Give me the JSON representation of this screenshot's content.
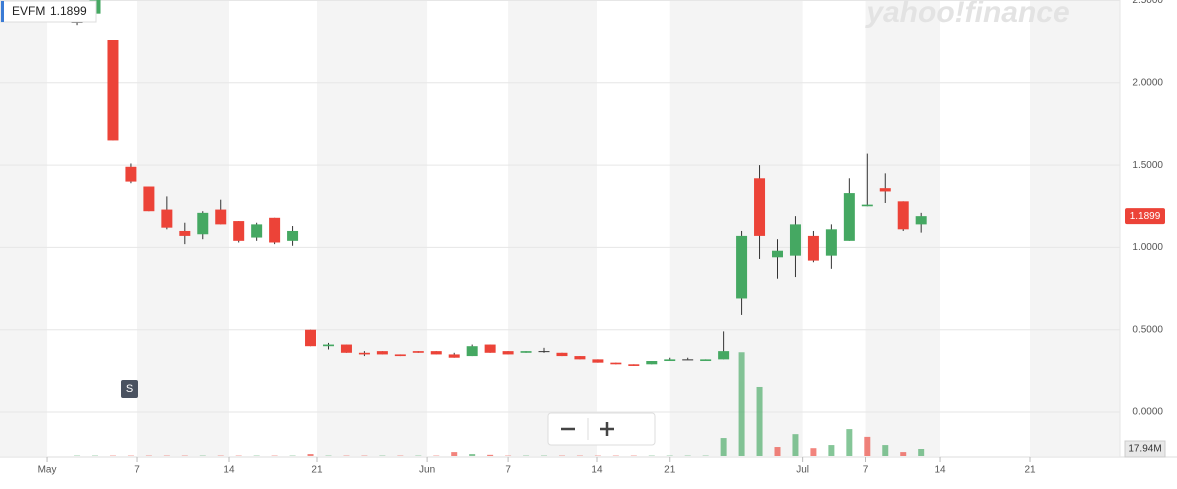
{
  "chart_data": {
    "type": "candlestick",
    "ticker": "EVFM",
    "last_price": 1.1899,
    "watermark": "yahoo!finance",
    "event_marker": "S",
    "volume_label": "17.94M",
    "up_color": "#45a862",
    "down_color": "#ec4338",
    "grid": true,
    "xlim": [
      -4.29,
      58.07
    ],
    "xticks": [
      {
        "value": -1.67,
        "label": "May"
      },
      {
        "value": 3.34,
        "label": "7"
      },
      {
        "value": 8.46,
        "label": "14"
      },
      {
        "value": 13.36,
        "label": "21"
      },
      {
        "value": 19.49,
        "label": "Jun"
      },
      {
        "value": 24.0,
        "label": "7"
      },
      {
        "value": 28.95,
        "label": "14"
      },
      {
        "value": 33.0,
        "label": "21"
      },
      {
        "value": 40.4,
        "label": "Jul"
      },
      {
        "value": 43.9,
        "label": "7"
      },
      {
        "value": 48.05,
        "label": "14"
      },
      {
        "value": 53.06,
        "label": "21"
      }
    ],
    "ylim": [
      -0.267,
      2.503
    ],
    "yticks": [
      {
        "value": 0,
        "label": "0.0000"
      },
      {
        "value": 0.5,
        "label": "0.5000"
      },
      {
        "value": 1,
        "label": "1.0000"
      },
      {
        "value": 1.5,
        "label": "1.5000"
      },
      {
        "value": 2,
        "label": "2.0000"
      },
      {
        "value": 2.5,
        "label": "2.5000"
      }
    ],
    "vlim": [
      0,
      300
    ],
    "open": [
      2.37,
      2.42,
      2.26,
      1.49,
      1.37,
      1.23,
      1.1,
      1.08,
      1.23,
      1.16,
      1.06,
      1.18,
      1.04,
      0.5,
      0.4,
      0.41,
      0.36,
      0.37,
      0.35,
      0.37,
      0.37,
      0.35,
      0.34,
      0.41,
      0.37,
      0.36,
      0.37,
      0.36,
      0.34,
      0.32,
      0.3,
      0.29,
      0.29,
      0.31,
      0.32,
      0.31,
      0.32,
      0.69,
      1.42,
      0.94,
      0.95,
      1.07,
      0.95,
      1.04,
      1.25,
      1.36,
      1.28,
      1.14
    ],
    "high": [
      2.38,
      2.52,
      2.26,
      1.51,
      1.37,
      1.31,
      1.15,
      1.22,
      1.29,
      1.16,
      1.15,
      1.18,
      1.13,
      0.5,
      0.42,
      0.41,
      0.37,
      0.37,
      0.35,
      0.37,
      0.37,
      0.36,
      0.41,
      0.41,
      0.37,
      0.37,
      0.39,
      0.36,
      0.34,
      0.32,
      0.3,
      0.29,
      0.31,
      0.33,
      0.33,
      0.32,
      0.49,
      1.1,
      1.5,
      1.05,
      1.19,
      1.1,
      1.14,
      1.42,
      1.57,
      1.45,
      1.28,
      1.21
    ],
    "low": [
      2.35,
      2.4,
      1.65,
      1.39,
      1.22,
      1.11,
      1.02,
      1.05,
      1.14,
      1.03,
      1.04,
      1.02,
      1.01,
      0.4,
      0.38,
      0.36,
      0.34,
      0.35,
      0.34,
      0.36,
      0.35,
      0.33,
      0.34,
      0.36,
      0.35,
      0.36,
      0.36,
      0.34,
      0.32,
      0.3,
      0.29,
      0.28,
      0.29,
      0.31,
      0.32,
      0.31,
      0.32,
      0.59,
      0.93,
      0.81,
      0.82,
      0.91,
      0.87,
      1.04,
      1.25,
      1.27,
      1.1,
      1.09
    ],
    "close": [
      2.37,
      2.51,
      1.65,
      1.4,
      1.22,
      1.12,
      1.07,
      1.21,
      1.14,
      1.04,
      1.14,
      1.03,
      1.1,
      0.4,
      0.41,
      0.36,
      0.35,
      0.35,
      0.34,
      0.36,
      0.35,
      0.33,
      0.4,
      0.36,
      0.35,
      0.37,
      0.37,
      0.34,
      0.32,
      0.3,
      0.29,
      0.28,
      0.31,
      0.32,
      0.32,
      0.32,
      0.37,
      1.07,
      1.07,
      0.98,
      1.14,
      0.92,
      1.11,
      1.33,
      1.26,
      1.34,
      1.11,
      1.19
    ],
    "volume": [
      1,
      1,
      1,
      1,
      1,
      1,
      1,
      1,
      1,
      1,
      1,
      1,
      1,
      5,
      1,
      1,
      1,
      1,
      1,
      1,
      1,
      10,
      5,
      3,
      1,
      1,
      1,
      1,
      1,
      1,
      1,
      1,
      1,
      1,
      1,
      1,
      46,
      266,
      177,
      23,
      56,
      20,
      28,
      69,
      49,
      28,
      10,
      17.94
    ]
  }
}
